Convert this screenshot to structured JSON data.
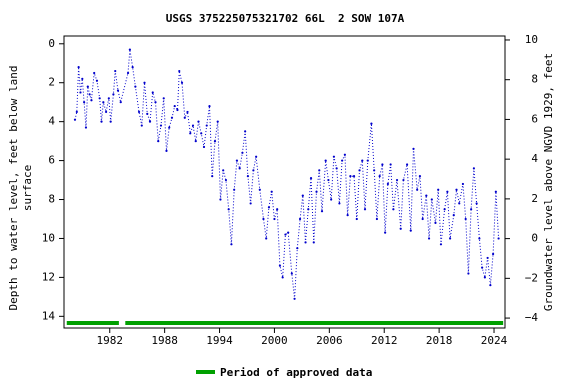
{
  "chart_data": {
    "type": "line",
    "title": "USGS 375225075321702 66L  2 SOW 107A",
    "y_label": [
      "Depth to water level, feet below land",
      "surface"
    ],
    "y2_label": "Groundwater level above NGVD 1929, feet",
    "xlim": [
      1977,
      2025.2
    ],
    "xticks": [
      1982,
      1988,
      1994,
      2000,
      2006,
      2012,
      2018,
      2024
    ],
    "ylim": [
      14.6,
      -0.4
    ],
    "yticks": [
      0,
      2,
      4,
      6,
      8,
      10,
      12,
      14
    ],
    "y2lim": [
      -4.5,
      10.2
    ],
    "y2ticks": [
      {
        "value": -4,
        "label": "−4"
      },
      {
        "value": -2,
        "label": "−2"
      },
      0,
      2,
      4,
      6,
      8,
      10
    ],
    "series": [
      {
        "color": "#0000cc",
        "x": [
          1978.2,
          1978.4,
          1978.6,
          1978.8,
          1979.0,
          1979.2,
          1979.4,
          1979.6,
          1979.8,
          1980.0,
          1980.3,
          1980.6,
          1980.9,
          1981.1,
          1981.3,
          1981.6,
          1981.9,
          1982.1,
          1982.4,
          1982.6,
          1982.9,
          1983.2,
          1984.0,
          1984.2,
          1984.5,
          1984.8,
          1985.2,
          1985.5,
          1985.8,
          1986.1,
          1986.4,
          1986.7,
          1987.0,
          1987.3,
          1987.6,
          1987.9,
          1988.2,
          1988.5,
          1988.8,
          1989.1,
          1989.4,
          1989.6,
          1989.9,
          1990.2,
          1990.5,
          1990.8,
          1991.1,
          1991.4,
          1991.7,
          1992.0,
          1992.3,
          1992.6,
          1992.9,
          1993.2,
          1993.5,
          1993.8,
          1994.1,
          1994.4,
          1994.7,
          1995.0,
          1995.3,
          1995.6,
          1995.9,
          1996.2,
          1996.5,
          1996.8,
          1997.1,
          1997.4,
          1997.7,
          1998.0,
          1998.4,
          1998.8,
          1999.1,
          1999.4,
          1999.7,
          2000.0,
          2000.3,
          2000.6,
          2000.9,
          2001.2,
          2001.5,
          2001.9,
          2002.2,
          2002.5,
          2002.8,
          2003.1,
          2003.4,
          2003.7,
          2004.0,
          2004.3,
          2004.6,
          2004.9,
          2005.2,
          2005.6,
          2005.9,
          2006.2,
          2006.5,
          2006.8,
          2007.1,
          2007.4,
          2007.7,
          2008.0,
          2008.3,
          2008.7,
          2009.0,
          2009.3,
          2009.6,
          2009.9,
          2010.2,
          2010.6,
          2010.9,
          2011.2,
          2011.5,
          2011.8,
          2012.1,
          2012.4,
          2012.7,
          2013.0,
          2013.4,
          2013.8,
          2014.1,
          2014.5,
          2014.9,
          2015.2,
          2015.6,
          2015.9,
          2016.2,
          2016.6,
          2016.9,
          2017.2,
          2017.6,
          2017.9,
          2018.2,
          2018.6,
          2018.9,
          2019.2,
          2019.6,
          2019.9,
          2020.2,
          2020.6,
          2020.9,
          2021.2,
          2021.5,
          2021.8,
          2022.1,
          2022.4,
          2022.7,
          2023.0,
          2023.3,
          2023.6,
          2023.9,
          2024.2,
          2024.5
        ],
        "values": [
          3.9,
          3.5,
          1.2,
          2.5,
          1.8,
          3.0,
          4.3,
          2.2,
          2.6,
          2.9,
          1.5,
          1.9,
          2.8,
          4.0,
          3.0,
          3.5,
          2.8,
          4.0,
          2.6,
          1.4,
          2.4,
          3.0,
          1.5,
          0.3,
          1.2,
          2.2,
          3.5,
          4.2,
          2.0,
          3.6,
          4.0,
          2.5,
          3.0,
          5.0,
          4.2,
          2.8,
          5.5,
          4.3,
          3.8,
          3.2,
          3.4,
          1.4,
          2.0,
          3.8,
          3.5,
          4.6,
          4.2,
          5.0,
          4.0,
          4.6,
          5.3,
          4.2,
          3.2,
          6.8,
          5.0,
          4.0,
          8.0,
          6.5,
          7.0,
          8.5,
          10.3,
          7.5,
          6.0,
          6.4,
          5.6,
          4.5,
          6.8,
          8.2,
          6.5,
          5.8,
          7.5,
          9.0,
          10.0,
          8.4,
          7.6,
          9.0,
          8.5,
          11.4,
          12.0,
          9.8,
          9.7,
          11.8,
          13.1,
          10.5,
          9.0,
          7.8,
          10.2,
          8.5,
          6.9,
          10.2,
          7.6,
          6.5,
          8.6,
          6.0,
          7.0,
          8.0,
          5.8,
          6.4,
          8.2,
          6.0,
          5.7,
          8.8,
          6.8,
          6.8,
          9.0,
          6.5,
          6.0,
          8.5,
          6.0,
          4.1,
          6.5,
          9.0,
          6.8,
          6.2,
          9.7,
          7.2,
          6.2,
          8.5,
          7.0,
          9.5,
          7.0,
          6.2,
          9.6,
          5.4,
          7.5,
          6.8,
          9.0,
          7.8,
          10.0,
          8.0,
          9.2,
          7.5,
          10.3,
          8.5,
          7.6,
          10.0,
          8.8,
          7.5,
          8.2,
          7.2,
          9.0,
          11.8,
          8.5,
          6.4,
          8.2,
          10.0,
          11.5,
          12.0,
          11.0,
          12.4,
          10.8,
          7.6,
          10.0
        ]
      }
    ],
    "approved_periods": {
      "name": "Period of approved data",
      "color": "#00a000",
      "ranges": [
        [
          1977.3,
          1983.0
        ],
        [
          1983.7,
          2025.0
        ]
      ]
    }
  }
}
